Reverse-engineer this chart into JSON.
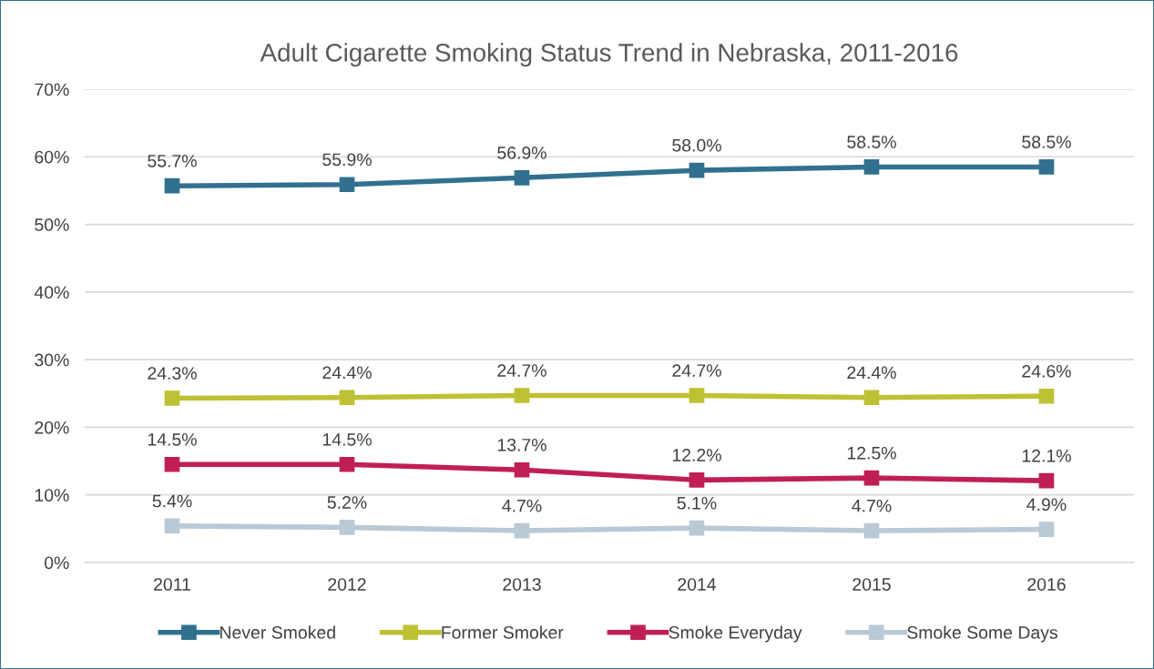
{
  "chart_data": {
    "type": "line",
    "title": "Adult Cigarette Smoking Status Trend in Nebraska, 2011-2016",
    "categories": [
      "2011",
      "2012",
      "2013",
      "2014",
      "2015",
      "2016"
    ],
    "series": [
      {
        "name": "Never Smoked",
        "color": "#31718f",
        "values": [
          55.7,
          55.9,
          56.9,
          58.0,
          58.5,
          58.5
        ],
        "value_labels": [
          "55.7%",
          "55.9%",
          "56.9%",
          "58.0%",
          "58.5%",
          "58.5%"
        ]
      },
      {
        "name": "Former Smoker",
        "color": "#bdc133",
        "values": [
          24.3,
          24.4,
          24.7,
          24.7,
          24.4,
          24.6
        ],
        "value_labels": [
          "24.3%",
          "24.4%",
          "24.7%",
          "24.7%",
          "24.4%",
          "24.6%"
        ]
      },
      {
        "name": "Smoke Everyday",
        "color": "#c01f55",
        "values": [
          14.5,
          14.5,
          13.7,
          12.2,
          12.5,
          12.1
        ],
        "value_labels": [
          "14.5%",
          "14.5%",
          "13.7%",
          "12.2%",
          "12.5%",
          "12.1%"
        ]
      },
      {
        "name": "Smoke Some Days",
        "color": "#b9c9d5",
        "values": [
          5.4,
          5.2,
          4.7,
          5.1,
          4.7,
          4.9
        ],
        "value_labels": [
          "5.4%",
          "5.2%",
          "4.7%",
          "5.1%",
          "4.7%",
          "4.9%"
        ]
      }
    ],
    "ylim": [
      0,
      70
    ],
    "yticks": [
      {
        "value": 0,
        "label": "0%"
      },
      {
        "value": 10,
        "label": "10%"
      },
      {
        "value": 20,
        "label": "20%"
      },
      {
        "value": 30,
        "label": "30%"
      },
      {
        "value": 40,
        "label": "40%"
      },
      {
        "value": 50,
        "label": "50%"
      },
      {
        "value": 60,
        "label": "60%"
      },
      {
        "value": 70,
        "label": "70%"
      }
    ],
    "grid": "y",
    "legend": "bottom",
    "marker": "square",
    "line_style": "solid"
  }
}
